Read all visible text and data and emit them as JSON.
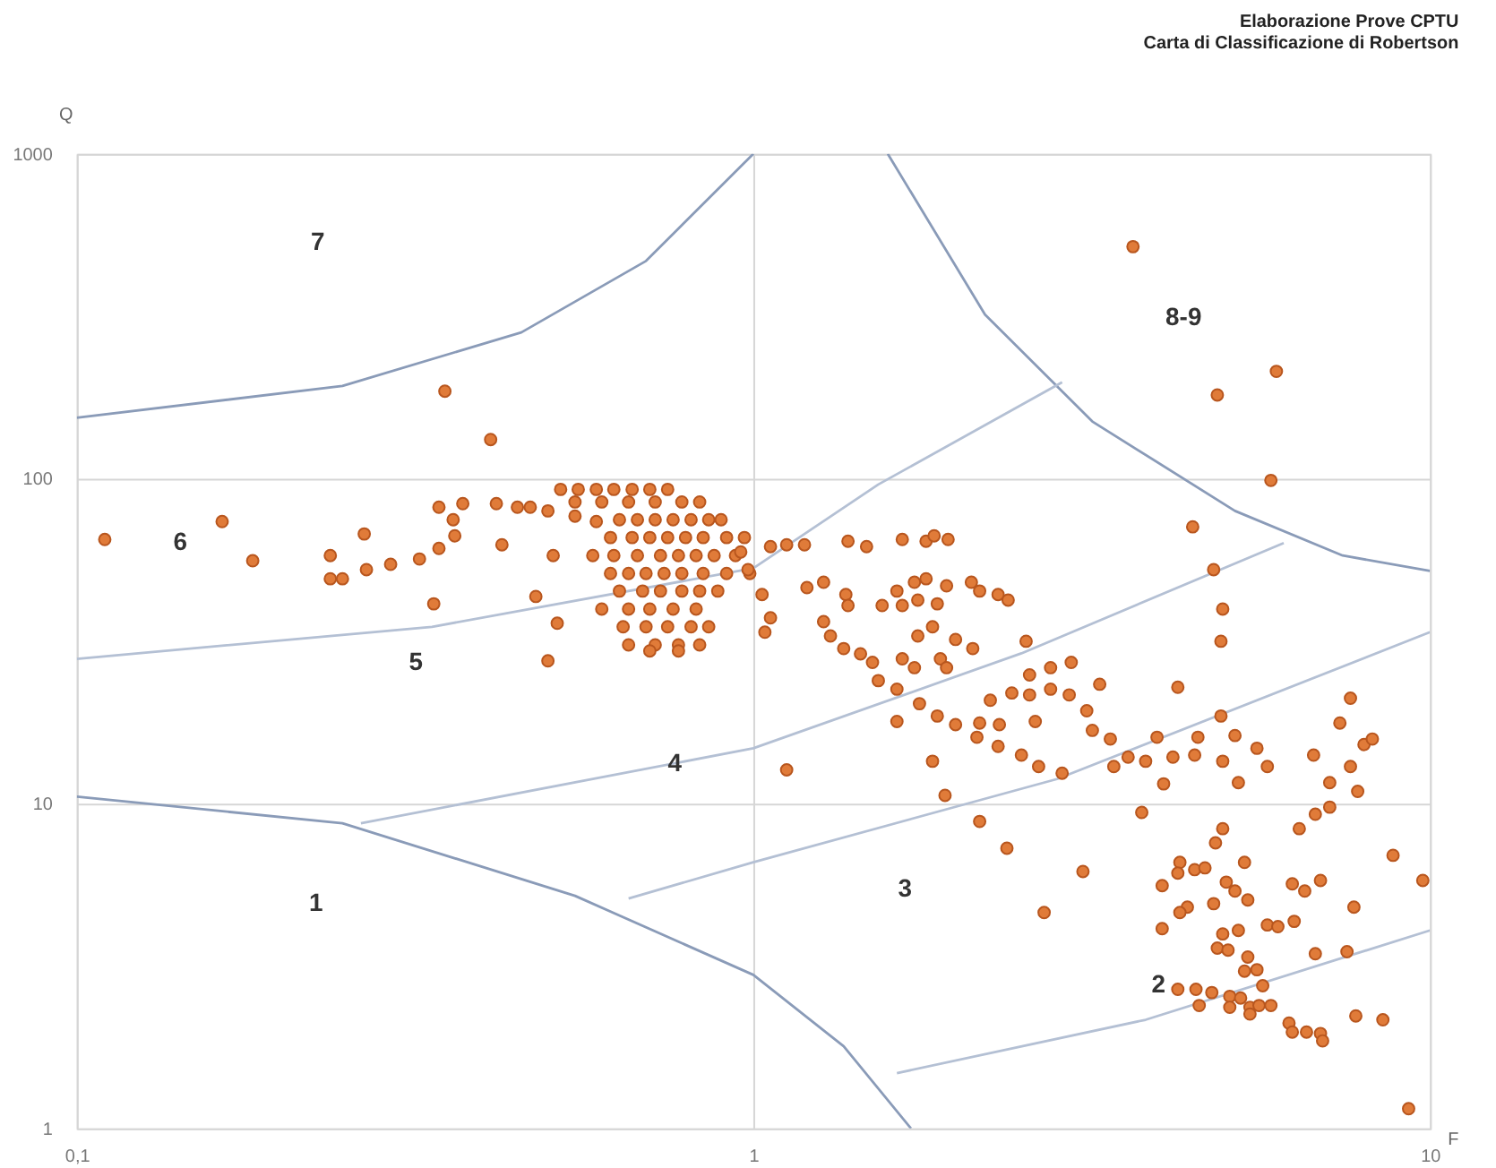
{
  "chart_data": {
    "type": "scatter",
    "title": "Elaborazione Prove CPTU",
    "subtitle": "Carta di Classificazione di Robertson",
    "xlabel": "F",
    "ylabel": "Q",
    "log": "xy",
    "grid": true,
    "xlim": [
      0.1,
      10
    ],
    "xticks": [
      {
        "value": 0.1,
        "label": "0,1"
      },
      1,
      10
    ],
    "ylim": [
      1,
      1000
    ],
    "yticks": [
      1,
      10,
      100,
      1000
    ],
    "annotations": [
      "7",
      "8-9",
      "6",
      "5",
      "4",
      "3",
      "1",
      "2"
    ],
    "series": [
      {
        "type": "line",
        "marker": "none",
        "color": "#8a9bb8",
        "x": [
          0.1,
          0.247,
          0.454,
          0.694,
          1
        ],
        "values": [
          154,
          193,
          282,
          468,
          1000
        ]
      },
      {
        "type": "line",
        "marker": "none",
        "color": "#8a9bb8",
        "x": [
          1.58,
          2.2,
          3.17,
          5.15,
          7.43,
          10
        ],
        "values": [
          1000,
          320,
          150,
          79.6,
          58,
          52
        ]
      },
      {
        "type": "line",
        "marker": "none",
        "color": "#b4c0d4",
        "x": [
          0.1,
          0.335,
          1,
          1.53,
          2.86
        ],
        "values": [
          27.9,
          35,
          53,
          96,
          198
        ]
      },
      {
        "type": "line",
        "marker": "none",
        "color": "#b4c0d4",
        "x": [
          0.263,
          1,
          2.49,
          6.08
        ],
        "values": [
          8.7,
          14.8,
          29,
          63.4
        ]
      },
      {
        "type": "line",
        "marker": "none",
        "color": "#b4c0d4",
        "x": [
          0.654,
          1,
          2.81,
          10
        ],
        "values": [
          5.1,
          6.6,
          11.9,
          33.7
        ]
      },
      {
        "type": "line",
        "marker": "none",
        "color": "#b4c0d4",
        "x": [
          1.63,
          3.8,
          10
        ],
        "values": [
          1.48,
          2.16,
          4.07
        ]
      },
      {
        "type": "line",
        "marker": "none",
        "color": "#8a9bb8",
        "x": [
          0.1,
          0.247,
          0.545,
          1,
          1.36,
          1.71
        ],
        "values": [
          10.5,
          8.7,
          5.2,
          2.97,
          1.79,
          1
        ]
      },
      {
        "marker": "circle",
        "color": "#e07b39",
        "x": [
          0.11,
          0.164,
          0.182,
          0.237,
          0.237,
          0.247,
          0.266,
          0.268,
          0.291,
          0.321,
          0.337,
          0.343,
          0.343,
          0.36,
          0.362,
          0.372,
          0.417,
          0.409,
          0.35,
          0.425,
          0.448,
          0.468,
          0.497,
          0.545,
          0.586,
          0.477,
          0.513,
          0.497,
          0.506,
          0.519,
          0.551,
          0.586,
          0.622,
          0.662,
          0.703,
          0.747,
          0.545,
          0.597,
          0.654,
          0.716,
          0.784,
          0.833,
          0.634,
          0.674,
          0.716,
          0.761,
          0.809,
          0.859,
          0.896,
          0.615,
          0.662,
          0.703,
          0.747,
          0.794,
          0.843,
          0.913,
          0.97,
          0.579,
          0.622,
          0.674,
          0.729,
          0.775,
          0.823,
          0.875,
          0.941,
          0.615,
          0.654,
          0.694,
          0.738,
          0.784,
          0.843,
          0.913,
          0.988,
          0.634,
          0.686,
          0.729,
          0.784,
          0.833,
          0.886,
          0.597,
          0.654,
          0.703,
          0.761,
          0.823,
          0.642,
          0.694,
          0.747,
          0.809,
          0.859,
          0.654,
          0.716,
          0.775,
          0.833,
          0.703,
          0.775,
          1.06,
          1.12,
          1.19,
          1.38,
          1.47,
          1.66,
          1.8,
          1.85,
          1.94,
          0.958,
          0.982,
          1.03,
          1.06,
          1.04,
          1.2,
          1.27,
          1.37,
          1.38,
          1.27,
          1.3,
          1.36,
          1.44,
          1.5,
          1.53,
          1.63,
          1.73,
          1.8,
          1.55,
          1.66,
          1.75,
          1.87,
          1.93,
          2.1,
          2.16,
          2.3,
          2.38,
          1.75,
          1.84,
          1.99,
          2.11,
          1.66,
          1.73,
          1.89,
          1.93,
          1.63,
          1.63,
          1.76,
          1.87,
          1.99,
          2.14,
          2.3,
          2.49,
          2.64,
          2.86,
          2.31,
          2.16,
          2.24,
          2.41,
          2.56,
          2.53,
          2.75,
          2.95,
          2.56,
          2.75,
          2.93,
          2.61,
          3.11,
          3.17,
          3.25,
          3.37,
          3.41,
          3.58,
          3.8,
          3.95,
          4.04,
          4.17,
          4.24,
          4.46,
          4.54,
          4.49,
          4.79,
          4.94,
          4.91,
          4.91,
          5.15,
          4.94,
          5.21,
          5.55,
          5.75,
          6.73,
          7.11,
          7.63,
          7.36,
          7.99,
          8.22,
          7.63,
          7.82,
          1.12,
          1.84,
          1.92,
          2.16,
          2.37,
          3.75,
          6.41,
          6.77,
          7.11,
          8.82,
          3.07,
          2.69,
          4.27,
          4.49,
          4.65,
          4.24,
          4.02,
          4.82,
          4.94,
          5.32,
          5.0,
          5.15,
          5.38,
          4.79,
          4.38,
          4.27,
          4.02,
          4.94,
          5.21,
          4.85,
          5.03,
          5.38,
          5.55,
          5.32,
          5.75,
          5.96,
          6.3,
          6.26,
          6.53,
          6.89,
          7.72,
          9.76,
          6.77,
          7.54,
          5.66,
          4.24,
          4.51,
          4.76,
          5.06,
          5.25,
          5.42,
          5.59,
          5.82,
          4.56,
          5.06,
          5.42,
          6.19,
          6.26,
          6.57,
          6.89,
          6.94,
          7.77,
          8.52,
          9.3,
          3.64,
          4.85,
          5.93,
          5.82
        ],
        "values": [
          65.0,
          73.8,
          55.9,
          58.0,
          49.2,
          49.2,
          67.6,
          52.5,
          54.5,
          56.6,
          41.2,
          61.0,
          81.7,
          74.8,
          66.7,
          83.8,
          83.8,
          132,
          186,
          62.6,
          81.7,
          81.7,
          79.6,
          76.7,
          73.8,
          43.4,
          35.9,
          27.5,
          58.0,
          92.7,
          92.7,
          92.7,
          92.7,
          92.7,
          92.7,
          92.7,
          84.8,
          84.8,
          84.8,
          84.8,
          84.8,
          84.8,
          74.8,
          74.8,
          74.8,
          74.8,
          74.8,
          74.8,
          74.8,
          65.9,
          65.9,
          65.9,
          65.9,
          65.9,
          65.9,
          65.9,
          65.9,
          58.0,
          58.0,
          58.0,
          58.0,
          58.0,
          58.0,
          58.0,
          58.0,
          51.1,
          51.1,
          51.1,
          51.1,
          51.1,
          51.1,
          51.1,
          51.1,
          45.1,
          45.1,
          45.1,
          45.1,
          45.1,
          45.1,
          39.7,
          39.7,
          39.7,
          39.7,
          39.7,
          35.0,
          35.0,
          35.0,
          35.0,
          35.0,
          30.8,
          30.8,
          30.8,
          30.8,
          29.5,
          29.5,
          61.8,
          62.6,
          62.6,
          64.2,
          61.8,
          65.0,
          64.2,
          66.7,
          65.0,
          59.5,
          52.5,
          44.0,
          37.3,
          33.7,
          46.2,
          48.0,
          44.0,
          40.7,
          36.3,
          32.8,
          30.0,
          28.9,
          27.2,
          23.9,
          45.1,
          48.0,
          49.2,
          40.7,
          40.7,
          42.3,
          41.2,
          46.8,
          48.0,
          45.1,
          44.0,
          42.3,
          32.8,
          35.0,
          32.0,
          30.0,
          27.9,
          26.2,
          27.9,
          26.2,
          22.5,
          17.9,
          20.3,
          18.6,
          17.5,
          16.0,
          15.0,
          14.1,
          13.0,
          12.4,
          17.5,
          17.7,
          20.8,
          21.9,
          21.6,
          31.6,
          26.2,
          27.2,
          24.9,
          22.5,
          21.6,
          17.9,
          19.3,
          16.8,
          23.3,
          15.8,
          13.0,
          13.9,
          13.5,
          16.0,
          11.5,
          13.9,
          22.8,
          71.1,
          16.0,
          14.1,
          52.5,
          39.7,
          31.6,
          18.6,
          16.2,
          13.5,
          11.6,
          14.8,
          13.0,
          14.1,
          11.6,
          21.1,
          17.7,
          15.2,
          15.8,
          13.0,
          10.9,
          12.7,
          13.5,
          10.6,
          8.81,
          7.29,
          9.39,
          8.37,
          9.27,
          9.75,
          6.93,
          6.18,
          4.62,
          6.59,
          6.26,
          6.34,
          6.11,
          5.59,
          7.57,
          8.37,
          6.59,
          5.73,
          5.38,
          5.05,
          4.92,
          4.8,
          4.62,
          4.12,
          3.97,
          4.07,
          3.59,
          3.54,
          3.37,
          3.08,
          3.05,
          4.23,
          4.18,
          4.34,
          5.66,
          5.38,
          5.8,
          4.8,
          5.8,
          3.45,
          3.5,
          2.75,
          2.68,
          2.68,
          2.62,
          2.55,
          2.52,
          2.36,
          2.39,
          2.39,
          2.39,
          2.36,
          2.25,
          2.11,
          1.98,
          1.98,
          1.96,
          1.86,
          2.22,
          2.16,
          1.15,
          518,
          181,
          214,
          98.8
        ]
      }
    ]
  }
}
